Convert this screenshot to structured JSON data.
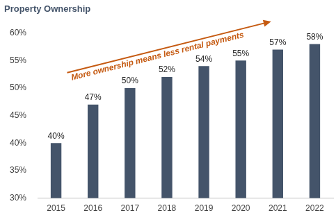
{
  "chart_data": {
    "type": "bar",
    "title": "Property Ownership",
    "annotation": "More ownership means less rental payments",
    "categories": [
      "2015",
      "2016",
      "2017",
      "2018",
      "2019",
      "2020",
      "2021",
      "2022"
    ],
    "values": [
      40,
      47,
      50,
      52,
      54,
      55,
      57,
      58
    ],
    "value_labels": [
      "40%",
      "47%",
      "50%",
      "52%",
      "54%",
      "55%",
      "57%",
      "58%"
    ],
    "color": "#44546a",
    "ylim": [
      30,
      60
    ],
    "yticks": [
      {
        "value": 30,
        "label": "30%"
      },
      {
        "value": 35,
        "label": "35%"
      },
      {
        "value": 40,
        "label": "40%"
      },
      {
        "value": 45,
        "label": "45%"
      },
      {
        "value": 50,
        "label": "50%"
      },
      {
        "value": 55,
        "label": "55%"
      },
      {
        "value": 60,
        "label": "60%"
      }
    ],
    "grid": false,
    "data_labels": true
  }
}
